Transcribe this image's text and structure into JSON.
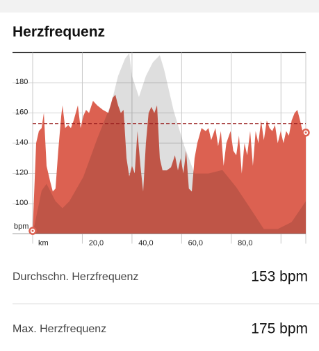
{
  "chart_data": {
    "type": "area",
    "title": "Herzfrequenz",
    "ylabel": "bpm",
    "xlabel": "km",
    "x": [
      0,
      1.4,
      2.5,
      3.6,
      4.5,
      5.6,
      7.0,
      8.1,
      9.2,
      10.3,
      11.5,
      12.0,
      13.1,
      14.3,
      15.4,
      16.5,
      18.2,
      19.3,
      20.4,
      21.5,
      22.7,
      24.3,
      26.0,
      28.3,
      30.5,
      32.2,
      33.3,
      34.4,
      35.5,
      36.6,
      37.8,
      38.9,
      40.0,
      41.1,
      42.2,
      43.4,
      44.5,
      45.6,
      46.7,
      47.8,
      49.0,
      50.1,
      51.2,
      52.3,
      54.0,
      55.7,
      57.3,
      58.5,
      59.6,
      60.7,
      61.8,
      62.9,
      64.1,
      65.2,
      66.3,
      68.0,
      69.7,
      70.8,
      71.9,
      73.6,
      74.7,
      75.8,
      76.9,
      78.0,
      79.7,
      80.8,
      82.0,
      83.1,
      84.2,
      85.3,
      86.4,
      87.6,
      88.7,
      89.8,
      90.9,
      92.0,
      93.1,
      94.3,
      95.4,
      96.5,
      97.6,
      98.7,
      99.9,
      101.0,
      102.1,
      103.2,
      104.3,
      105.5,
      106.6,
      107.7,
      108.8,
      110
    ],
    "series": [
      {
        "color": "#dc6151",
        "values": [
          82,
          140,
          148,
          150,
          160,
          125,
          115,
          108,
          110,
          135,
          158,
          165,
          150,
          152,
          150,
          155,
          165,
          150,
          158,
          162,
          160,
          168,
          165,
          162,
          160,
          170,
          172,
          165,
          160,
          162,
          130,
          118,
          125,
          120,
          148,
          125,
          108,
          140,
          160,
          164,
          160,
          165,
          130,
          122,
          122,
          124,
          132,
          122,
          130,
          120,
          135,
          110,
          108,
          130,
          140,
          150,
          148,
          150,
          142,
          150,
          138,
          148,
          125,
          140,
          148,
          135,
          132,
          145,
          120,
          140,
          132,
          148,
          125,
          148,
          140,
          155,
          142,
          155,
          150,
          148,
          152,
          140,
          148,
          140,
          148,
          145,
          155,
          160,
          162,
          155,
          147,
          147
        ]
      },
      {
        "color": "#dedede",
        "axis": "y2",
        "x": [
          0,
          3.6,
          5.6,
          9.2,
          12.0,
          14.8,
          20.4,
          26.0,
          31.6,
          34.4,
          37.2,
          38.9,
          40.0,
          42.8,
          45.6,
          48.4,
          51.2,
          52.9,
          56.8,
          61.0,
          65.2,
          70.8,
          76.4,
          82.0,
          87.6,
          93.1,
          98.7,
          104.3,
          110
        ],
        "values": [
          0,
          23.8,
          27.6,
          18,
          14.2,
          18,
          31.4,
          52.5,
          71.6,
          87,
          96.6,
          99.6,
          87,
          75.5,
          87,
          94.6,
          98.5,
          90.8,
          67.8,
          48.7,
          33.3,
          33.3,
          35.2,
          25.7,
          14.2,
          2.7,
          2.7,
          6.5,
          18
        ]
      }
    ],
    "average": 153,
    "average_color": "#9a1f1f",
    "xlim": [
      0,
      110
    ],
    "xticks": [
      {
        "value": 20,
        "label": "20,0"
      },
      {
        "value": 40,
        "label": "40,0"
      },
      {
        "value": 60,
        "label": "60,0"
      },
      {
        "value": 80,
        "label": "80,0"
      },
      {
        "value": 100,
        "label": ""
      }
    ],
    "ylim": [
      80,
      200
    ],
    "yticks": [
      100,
      120,
      140,
      160,
      180
    ],
    "y2lim": [
      0,
      100
    ],
    "grid": true
  },
  "stats": [
    {
      "label": "Durchschn. Herzfrequenz",
      "value": "153 bpm"
    },
    {
      "label": "Max. Herzfrequenz",
      "value": "175 bpm"
    }
  ]
}
